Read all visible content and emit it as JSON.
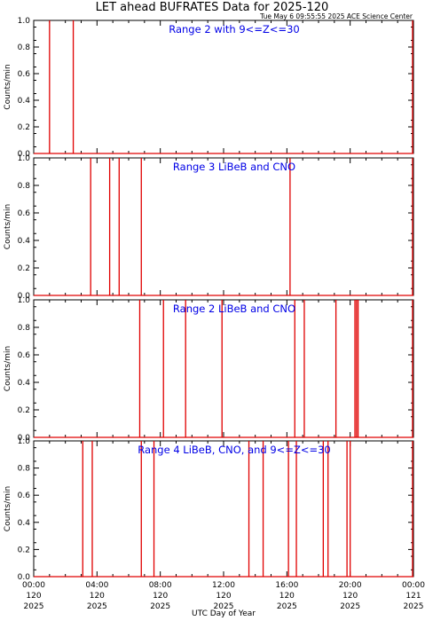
{
  "header": {
    "title": "LET ahead BUFRATES Data for 2025-120",
    "timestamp": "Tue May  6 09:55:55 2025 ACE Science Center"
  },
  "colors": {
    "series": "#e00000",
    "annotation": "#0000e6",
    "axes": "#000000",
    "background": "#ffffff"
  },
  "chart_data": [
    {
      "type": "line",
      "title": "Range 2 with 9<=Z<=30",
      "ylabel": "Counts/min",
      "ylim": [
        0,
        1.0
      ],
      "xlim": [
        0,
        24
      ],
      "yticks": [
        "0.0",
        "0.2",
        "0.4",
        "0.6",
        "0.8",
        "1.0"
      ],
      "spikes_hours": [
        1.0,
        2.5
      ]
    },
    {
      "type": "line",
      "title": "Range 3 LiBeB and CNO",
      "ylabel": "Counts/min",
      "ylim": [
        0,
        1.0
      ],
      "xlim": [
        0,
        24
      ],
      "yticks": [
        "0.0",
        "0.2",
        "0.4",
        "0.6",
        "0.8",
        "1.0"
      ],
      "spikes_hours": [
        3.6,
        4.8,
        5.4,
        6.8,
        16.2
      ]
    },
    {
      "type": "line",
      "title": "Range 2 LiBeB and CNO",
      "ylabel": "Counts/min",
      "ylim": [
        0,
        1.0
      ],
      "xlim": [
        0,
        24
      ],
      "yticks": [
        "0.0",
        "0.2",
        "0.4",
        "0.6",
        "0.8",
        "1.0"
      ],
      "spikes_hours": [
        6.7,
        8.2,
        9.6,
        11.9,
        16.5,
        17.1,
        19.1,
        20.3,
        20.4,
        20.5
      ]
    },
    {
      "type": "line",
      "title": "Range 4 LiBeB, CNO, and 9<=Z<=30",
      "ylabel": "Counts/min",
      "ylim": [
        0,
        1.0
      ],
      "xlim": [
        0,
        24
      ],
      "yticks": [
        "0.0",
        "0.2",
        "0.4",
        "0.6",
        "0.8",
        "1.0"
      ],
      "spikes_hours": [
        3.1,
        3.7,
        6.8,
        7.6,
        13.6,
        14.5,
        16.1,
        16.6,
        18.3,
        18.6,
        19.8,
        20.0
      ],
      "xlabel": "UTC Day of Year",
      "xticks": [
        [
          "00:00",
          "120",
          "2025"
        ],
        [
          "04:00",
          "120",
          "2025"
        ],
        [
          "08:00",
          "120",
          "2025"
        ],
        [
          "12:00",
          "120",
          "2025"
        ],
        [
          "16:00",
          "120",
          "2025"
        ],
        [
          "20:00",
          "120",
          "2025"
        ],
        [
          "00:00",
          "121",
          "2025"
        ]
      ]
    }
  ]
}
